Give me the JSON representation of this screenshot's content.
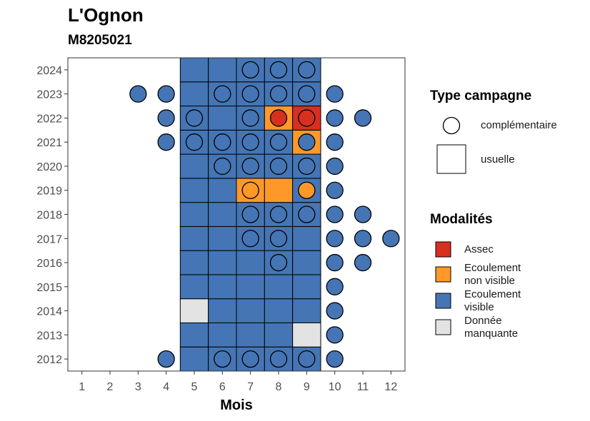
{
  "title": "L'Ognon",
  "subtitle": "M8205021",
  "chart_data": {
    "type": "heatmap",
    "title": "L'Ognon",
    "subtitle": "M8205021",
    "xlabel": "Mois",
    "ylabel": "",
    "x_ticks": [
      1,
      2,
      3,
      4,
      5,
      6,
      7,
      8,
      9,
      10,
      11,
      12
    ],
    "y_ticks": [
      2012,
      2013,
      2014,
      2015,
      2016,
      2017,
      2018,
      2019,
      2020,
      2021,
      2022,
      2023,
      2024
    ],
    "xlim": [
      0.5,
      12.5
    ],
    "ylim": [
      2011.5,
      2024.5
    ],
    "colors": {
      "Assec": "#d7301f",
      "Ecoulement non visible": "#fe9929",
      "Ecoulement visible": "#4575b4",
      "Donnée manquante": "#e3e3e3"
    },
    "usuelle": {
      "2024": {
        "5": "Ecoulement visible",
        "6": "Ecoulement visible",
        "7": "Ecoulement visible",
        "8": "Ecoulement visible",
        "9": "Ecoulement visible"
      },
      "2023": {
        "5": "Ecoulement visible",
        "6": "Ecoulement visible",
        "7": "Ecoulement visible",
        "8": "Ecoulement visible",
        "9": "Ecoulement visible"
      },
      "2022": {
        "5": "Ecoulement visible",
        "6": "Ecoulement visible",
        "7": "Ecoulement visible",
        "8": "Ecoulement non visible",
        "9": "Assec"
      },
      "2021": {
        "5": "Ecoulement visible",
        "6": "Ecoulement visible",
        "7": "Ecoulement visible",
        "8": "Ecoulement visible",
        "9": "Ecoulement non visible"
      },
      "2020": {
        "5": "Ecoulement visible",
        "6": "Ecoulement visible",
        "7": "Ecoulement visible",
        "8": "Ecoulement visible",
        "9": "Ecoulement visible"
      },
      "2019": {
        "5": "Ecoulement visible",
        "6": "Ecoulement visible",
        "7": "Ecoulement non visible",
        "8": "Ecoulement non visible",
        "9": "Ecoulement visible"
      },
      "2018": {
        "5": "Ecoulement visible",
        "6": "Ecoulement visible",
        "7": "Ecoulement visible",
        "8": "Ecoulement visible",
        "9": "Ecoulement visible"
      },
      "2017": {
        "5": "Ecoulement visible",
        "6": "Ecoulement visible",
        "7": "Ecoulement visible",
        "8": "Ecoulement visible",
        "9": "Ecoulement visible"
      },
      "2016": {
        "5": "Ecoulement visible",
        "6": "Ecoulement visible",
        "7": "Ecoulement visible",
        "8": "Ecoulement visible",
        "9": "Ecoulement visible"
      },
      "2015": {
        "5": "Ecoulement visible",
        "6": "Ecoulement visible",
        "7": "Ecoulement visible",
        "8": "Ecoulement visible",
        "9": "Ecoulement visible"
      },
      "2014": {
        "5": "Donnée manquante",
        "6": "Ecoulement visible",
        "7": "Ecoulement visible",
        "8": "Ecoulement visible",
        "9": "Ecoulement visible"
      },
      "2013": {
        "5": "Ecoulement visible",
        "6": "Ecoulement visible",
        "7": "Ecoulement visible",
        "8": "Ecoulement visible",
        "9": "Donnée manquante"
      },
      "2012": {
        "5": "Ecoulement visible",
        "6": "Ecoulement visible",
        "7": "Ecoulement visible",
        "8": "Ecoulement visible",
        "9": "Ecoulement visible"
      }
    },
    "complementaire": {
      "2024": {
        "7": "Ecoulement visible",
        "8": "Ecoulement visible",
        "9": "Ecoulement visible"
      },
      "2023": {
        "3": "Ecoulement visible",
        "4": "Ecoulement visible",
        "6": "Ecoulement visible",
        "7": "Ecoulement visible",
        "8": "Ecoulement visible",
        "9": "Ecoulement visible",
        "10": "Ecoulement visible"
      },
      "2022": {
        "4": "Ecoulement visible",
        "5": "Ecoulement visible",
        "7": "Ecoulement visible",
        "8": "Assec",
        "9": "Assec",
        "10": "Ecoulement visible",
        "11": "Ecoulement visible"
      },
      "2021": {
        "4": "Ecoulement visible",
        "5": "Ecoulement visible",
        "6": "Ecoulement visible",
        "7": "Ecoulement visible",
        "8": "Ecoulement visible",
        "9": "Ecoulement visible",
        "10": "Ecoulement visible"
      },
      "2020": {
        "6": "Ecoulement visible",
        "7": "Ecoulement visible",
        "8": "Ecoulement visible",
        "9": "Ecoulement visible",
        "10": "Ecoulement visible"
      },
      "2019": {
        "7": "Ecoulement non visible",
        "9": "Ecoulement non visible",
        "10": "Ecoulement visible"
      },
      "2018": {
        "7": "Ecoulement visible",
        "8": "Ecoulement visible",
        "9": "Ecoulement visible",
        "10": "Ecoulement visible",
        "11": "Ecoulement visible"
      },
      "2017": {
        "7": "Ecoulement visible",
        "8": "Ecoulement visible",
        "10": "Ecoulement visible",
        "11": "Ecoulement visible",
        "12": "Ecoulement visible"
      },
      "2016": {
        "8": "Ecoulement visible",
        "10": "Ecoulement visible",
        "11": "Ecoulement visible"
      },
      "2015": {
        "10": "Ecoulement visible"
      },
      "2014": {
        "10": "Ecoulement visible"
      },
      "2013": {
        "10": "Ecoulement visible"
      },
      "2012": {
        "4": "Ecoulement visible",
        "6": "Ecoulement visible",
        "7": "Ecoulement visible",
        "8": "Ecoulement visible",
        "9": "Ecoulement visible",
        "10": "Ecoulement visible"
      }
    },
    "legend_type": {
      "title": "Type campagne",
      "items": [
        {
          "label": "complémentaire",
          "shape": "circle"
        },
        {
          "label": "usuelle",
          "shape": "square"
        }
      ]
    },
    "legend_modalites": {
      "title": "Modalités",
      "items": [
        {
          "key": "Assec",
          "label": [
            "Assec"
          ]
        },
        {
          "key": "Ecoulement non visible",
          "label": [
            "Ecoulement",
            "non visible"
          ]
        },
        {
          "key": "Ecoulement visible",
          "label": [
            "Ecoulement",
            "visible"
          ]
        },
        {
          "key": "Donnée manquante",
          "label": [
            "Donnée",
            "manquante"
          ]
        }
      ]
    },
    "legend_position": "right"
  }
}
